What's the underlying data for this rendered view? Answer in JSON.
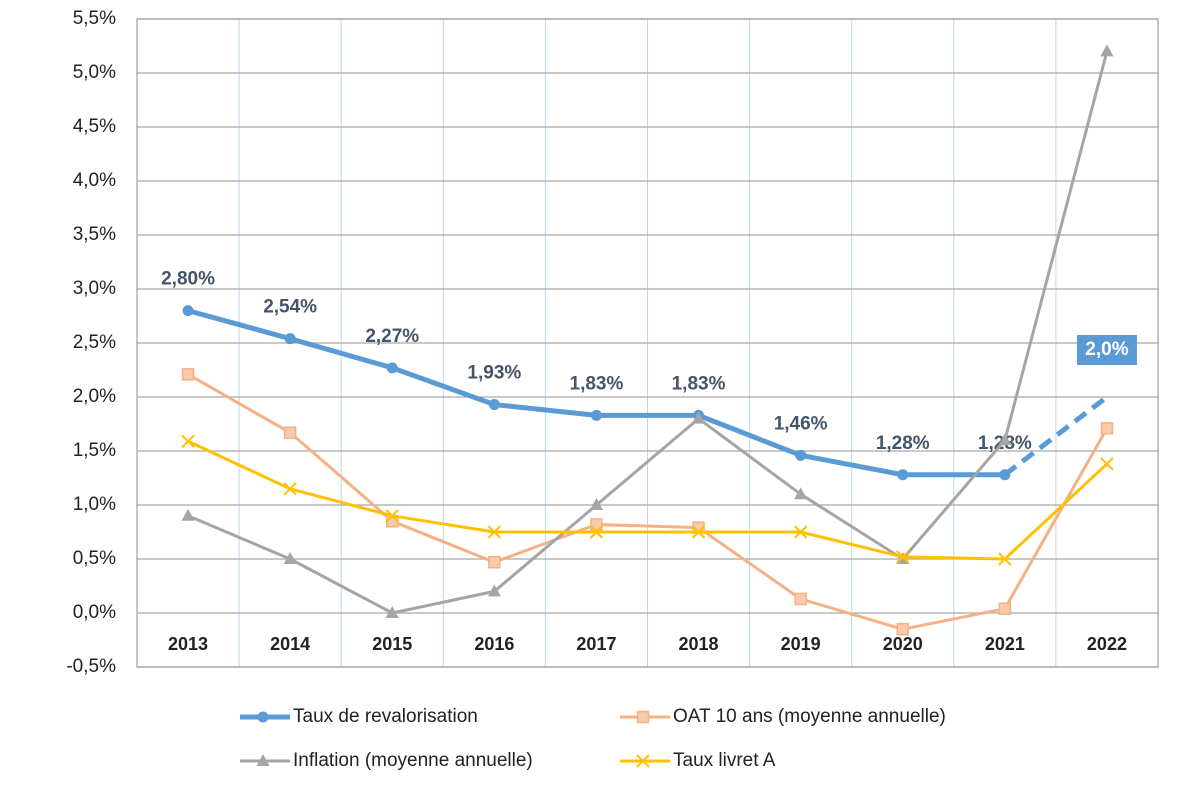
{
  "chart_data": {
    "type": "line",
    "categories": [
      "2013",
      "2014",
      "2015",
      "2016",
      "2017",
      "2018",
      "2019",
      "2020",
      "2021",
      "2022"
    ],
    "series": [
      {
        "name": "Taux de revalorisation",
        "color": "#5b9bd5",
        "marker": "circle",
        "dashed_last": true,
        "values": [
          2.8,
          2.54,
          2.27,
          1.93,
          1.83,
          1.83,
          1.46,
          1.28,
          1.28,
          2.0
        ],
        "value_labels": [
          "2,80%",
          "2,54%",
          "2,27%",
          "1,93%",
          "1,83%",
          "1,83%",
          "1,46%",
          "1,28%",
          "1,28%",
          "2,0%"
        ]
      },
      {
        "name": "OAT 10 ans (moyenne annuelle)",
        "color": "#f4b183",
        "marker": "square",
        "values": [
          2.21,
          1.67,
          0.85,
          0.47,
          0.82,
          0.79,
          0.13,
          -0.15,
          0.04,
          1.71
        ]
      },
      {
        "name": "Inflation (moyenne annuelle)",
        "color": "#a5a5a5",
        "marker": "triangle",
        "values": [
          0.9,
          0.5,
          0.0,
          0.2,
          1.0,
          1.8,
          1.1,
          0.5,
          1.6,
          5.2
        ]
      },
      {
        "name": "Taux livret A",
        "color": "#ffc000",
        "marker": "x",
        "values": [
          1.59,
          1.15,
          0.9,
          0.75,
          0.75,
          0.75,
          0.75,
          0.52,
          0.5,
          1.38
        ]
      }
    ],
    "ylim": [
      -0.5,
      5.5
    ],
    "yticks": [
      {
        "value": -0.5,
        "label": "-0,5%"
      },
      {
        "value": 0,
        "label": "0,0%"
      },
      {
        "value": 0.5,
        "label": "0,5%"
      },
      {
        "value": 1,
        "label": "1,0%"
      },
      {
        "value": 1.5,
        "label": "1,5%"
      },
      {
        "value": 2,
        "label": "2,0%"
      },
      {
        "value": 2.5,
        "label": "2,5%"
      },
      {
        "value": 3,
        "label": "3,0%"
      },
      {
        "value": 3.5,
        "label": "3,5%"
      },
      {
        "value": 4,
        "label": "4,0%"
      },
      {
        "value": 4.5,
        "label": "4,5%"
      },
      {
        "value": 5,
        "label": "5,0%"
      },
      {
        "value": 5.5,
        "label": "5,5%"
      }
    ],
    "grid": true,
    "legend": "bottom"
  }
}
